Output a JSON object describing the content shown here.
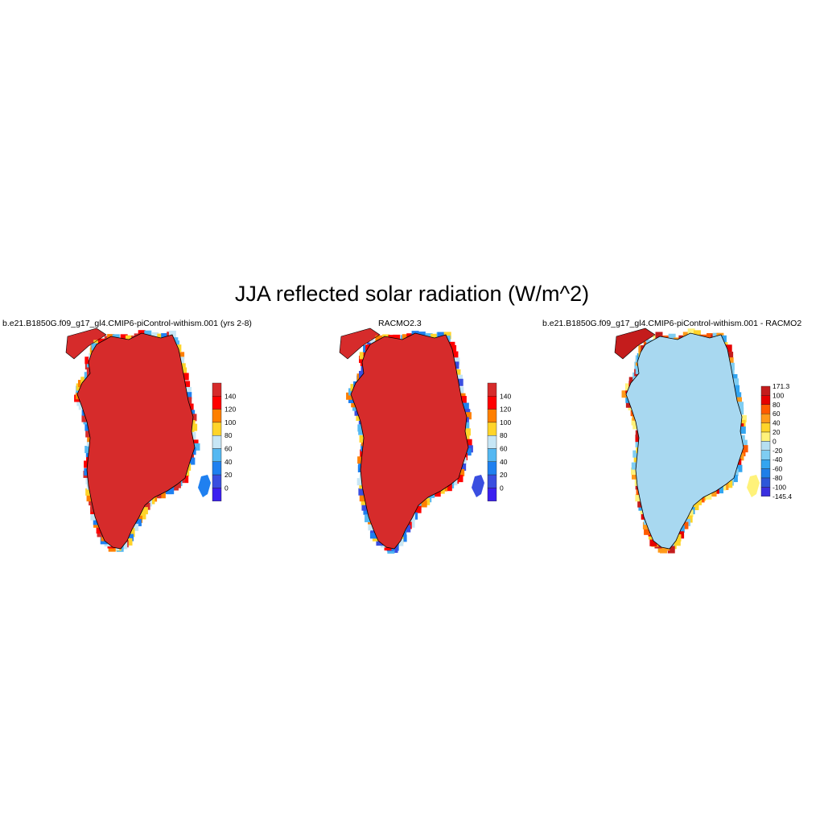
{
  "figure": {
    "title": "JJA reflected solar radiation (W/m^2)"
  },
  "panels": [
    {
      "title": "b.e21.B1850G.f09_g17_gl4.CMIP6-piControl-withism.001 (yrs 2-8)",
      "colorbar": {
        "labels": [
          "140",
          "120",
          "100",
          "80",
          "60",
          "40",
          "20",
          "0"
        ],
        "colors": [
          "#d62b2b",
          "#ff0000",
          "#ff7f00",
          "#ffd42a",
          "#c7e6f5",
          "#55b8f2",
          "#1f80f0",
          "#3a4ee0",
          "#3b1ff0"
        ]
      },
      "interior_color": "#d62b2b"
    },
    {
      "title": "RACMO2.3",
      "colorbar": {
        "labels": [
          "140",
          "120",
          "100",
          "80",
          "60",
          "40",
          "20",
          "0"
        ],
        "colors": [
          "#d62b2b",
          "#ff0000",
          "#ff7f00",
          "#ffd42a",
          "#c7e6f5",
          "#55b8f2",
          "#1f80f0",
          "#3a4ee0",
          "#3b1ff0"
        ]
      },
      "interior_color": "#d62b2b"
    },
    {
      "title": "b.e21.B1850G.f09_g17_gl4.CMIP6-piControl-withism.001 - RACMO2",
      "colorbar": {
        "labels": [
          "171.3",
          "100",
          "80",
          "60",
          "40",
          "20",
          "0",
          "-20",
          "-40",
          "-60",
          "-80",
          "-100",
          "-145.4"
        ],
        "colors": [
          "#c41c1c",
          "#e60000",
          "#ff5a00",
          "#ff9a1a",
          "#ffd42a",
          "#fff27a",
          "#b6dff2",
          "#7fcdf2",
          "#33a5f0",
          "#1f7fe8",
          "#2d57d9",
          "#3a2fe0"
        ]
      },
      "interior_color": "#a8d8f0"
    }
  ]
}
